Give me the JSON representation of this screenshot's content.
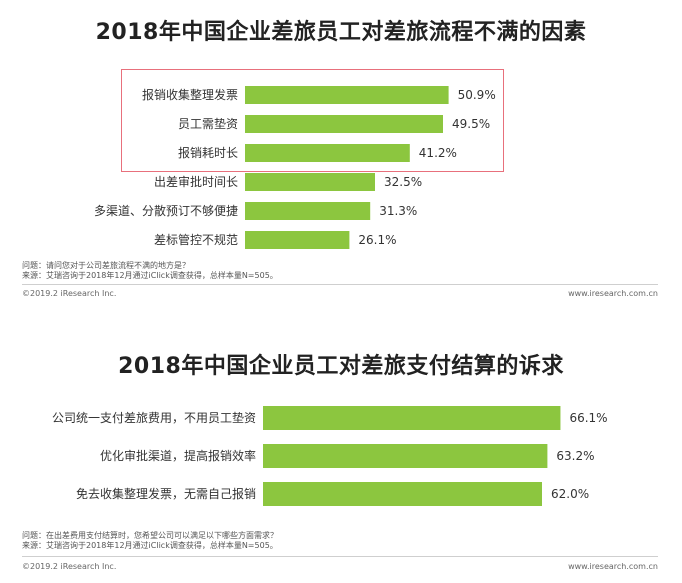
{
  "charts": [
    {
      "title": "2018年中国企业差旅员工对差旅流程不满的因素",
      "chart_data": {
        "type": "bar",
        "orientation": "horizontal",
        "title": "2018年中国企业差旅员工对差旅流程不满的因素",
        "categories": [
          "报销收集整理发票",
          "员工需垫资",
          "报销耗时长",
          "出差审批时间长",
          "多渠道、分散预订不够便捷",
          "差标管控不规范"
        ],
        "values": [
          50.9,
          49.5,
          41.2,
          32.5,
          31.3,
          26.1
        ],
        "value_labels": [
          "50.9%",
          "49.5%",
          "41.2%",
          "32.5%",
          "31.3%",
          "26.1%"
        ],
        "xlim": [
          0,
          70
        ],
        "bar_color": "#8cc63f",
        "highlighted_categories": [
          "报销收集整理发票",
          "员工需垫资",
          "报销耗时长"
        ],
        "highlight_color": "#e8707c"
      },
      "notes": [
        "问题：请问您对于公司差旅流程不满的地方是？",
        "来源：艾瑞咨询于2018年12月通过iClick调查获得，总样本量N=505。"
      ],
      "footer_left": "©2019.2 iResearch Inc.",
      "footer_right": "www.iresearch.com.cn"
    },
    {
      "title": "2018年中国企业员工对差旅支付结算的诉求",
      "chart_data": {
        "type": "bar",
        "orientation": "horizontal",
        "title": "2018年中国企业员工对差旅支付结算的诉求",
        "categories": [
          "公司统一支付差旅费用，不用员工垫资",
          "优化审批渠道，提高报销效率",
          "免去收集整理发票，无需自己报销"
        ],
        "values": [
          66.1,
          63.2,
          62.0
        ],
        "value_labels": [
          "66.1%",
          "63.2%",
          "62.0%"
        ],
        "xlim": [
          0,
          100
        ],
        "bar_color": "#8cc63f"
      },
      "notes": [
        "问题：在出差费用支付结算时，您希望公司可以满足以下哪些方面需求？",
        "来源：艾瑞咨询于2018年12月通过iClick调查获得，总样本量N=505。"
      ],
      "footer_left": "©2019.2 iResearch Inc.",
      "footer_right": "www.iresearch.com.cn"
    }
  ]
}
